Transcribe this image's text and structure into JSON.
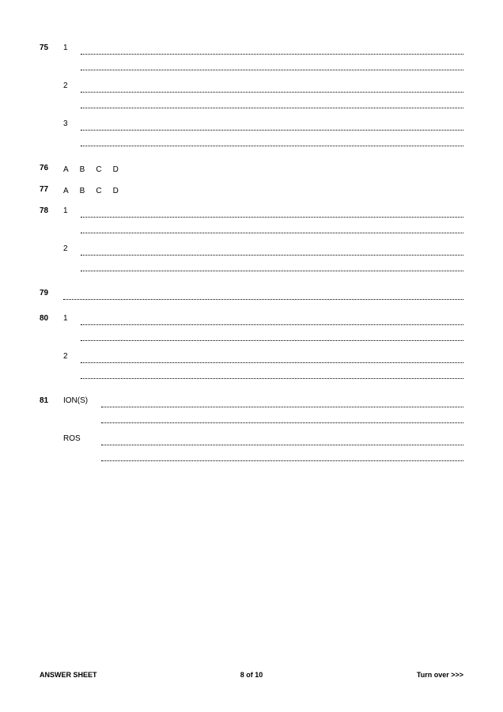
{
  "questions": [
    {
      "num": "75",
      "type": "numbered-lines",
      "subs": [
        {
          "label": "1",
          "lines": 2
        },
        {
          "label": "2",
          "lines": 2
        },
        {
          "label": "3",
          "lines": 2
        }
      ]
    },
    {
      "num": "76",
      "type": "abcd",
      "options": [
        "A",
        "B",
        "C",
        "D"
      ]
    },
    {
      "num": "77",
      "type": "abcd",
      "options": [
        "A",
        "B",
        "C",
        "D"
      ]
    },
    {
      "num": "78",
      "type": "numbered-lines",
      "subs": [
        {
          "label": "1",
          "lines": 2
        },
        {
          "label": "2",
          "lines": 2
        }
      ]
    },
    {
      "num": "79",
      "type": "lines",
      "lines": 1
    },
    {
      "num": "80",
      "type": "numbered-lines",
      "subs": [
        {
          "label": "1",
          "lines": 2
        },
        {
          "label": "2",
          "lines": 2
        }
      ]
    },
    {
      "num": "81",
      "type": "labeled-lines",
      "subs": [
        {
          "label": "ION(S)",
          "lines": 2
        },
        {
          "label": "ROS",
          "lines": 2
        }
      ]
    }
  ],
  "footer": {
    "left": "ANSWER SHEET",
    "center": "8 of 10",
    "right": "Turn over >>>"
  },
  "style": {
    "bg": "#ffffff",
    "text": "#000000",
    "dot_spacing": 2
  }
}
